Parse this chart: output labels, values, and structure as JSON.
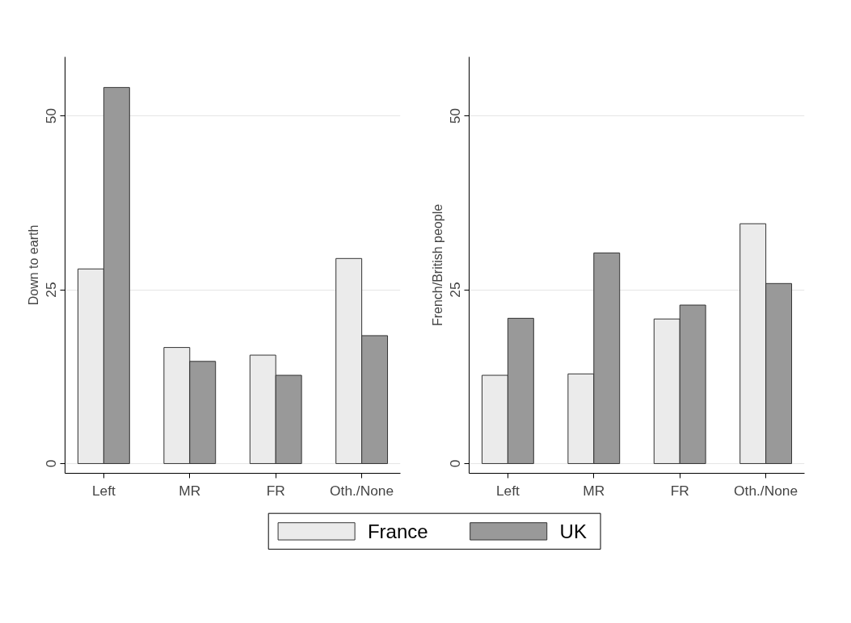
{
  "chart_data": [
    {
      "type": "bar",
      "ylabel": "Down to earth",
      "categories": [
        "Left",
        "MR",
        "FR",
        "Oth./None"
      ],
      "ylim": [
        -1.4,
        58.5
      ],
      "yticks": [
        0,
        25,
        50
      ],
      "grid": "y",
      "legend": "bottom",
      "series": [
        {
          "name": "France",
          "color": "#ebebeb",
          "values": [
            28,
            16.7,
            15.6,
            29.5
          ]
        },
        {
          "name": "UK",
          "color": "#999999",
          "values": [
            54.1,
            14.7,
            12.7,
            18.4
          ]
        }
      ]
    },
    {
      "type": "bar",
      "ylabel": "French/British people",
      "categories": [
        "Left",
        "MR",
        "FR",
        "Oth./None"
      ],
      "ylim": [
        -1.4,
        58.5
      ],
      "yticks": [
        0,
        25,
        50
      ],
      "grid": "y",
      "series": [
        {
          "color": "#ebebeb",
          "values": [
            12.7,
            12.9,
            20.8,
            34.5
          ]
        },
        {
          "color": "#999999",
          "values": [
            20.9,
            30.3,
            22.8,
            25.9
          ]
        }
      ]
    }
  ]
}
